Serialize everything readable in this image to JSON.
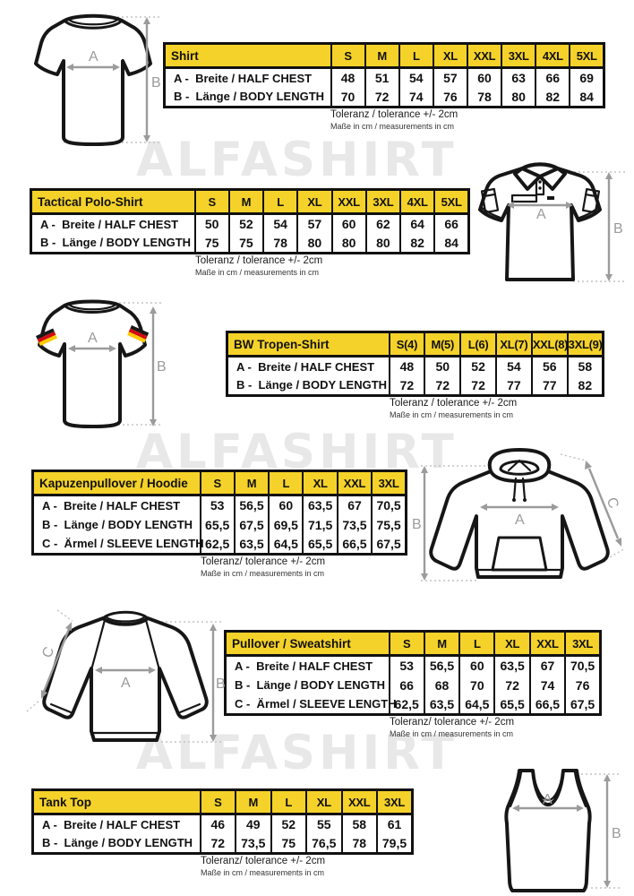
{
  "watermark": "ALFASHIRT",
  "colors": {
    "header_yellow": "#f5d229",
    "table_border": "#111111",
    "arrow_gray": "#9b9b9b",
    "watermark_gray": "#e8e8e8",
    "flag_black": "#181818",
    "flag_red": "#d40a12",
    "flag_gold": "#ffca00"
  },
  "sections": [
    {
      "id": "shirt",
      "title": "Shirt",
      "sizes": [
        "S",
        "M",
        "L",
        "XL",
        "XXL",
        "3XL",
        "4XL",
        "5XL"
      ],
      "rows": [
        {
          "label": "A -  Breite / HALF CHEST",
          "values": [
            "48",
            "51",
            "54",
            "57",
            "60",
            "63",
            "66",
            "69"
          ]
        },
        {
          "label": "B -  Länge / BODY LENGTH",
          "values": [
            "70",
            "72",
            "74",
            "76",
            "78",
            "80",
            "82",
            "84"
          ]
        }
      ],
      "note1": "Toleranz / tolerance +/- 2cm",
      "note2": "Maße in cm / measurements in cm",
      "diagram": {
        "type": "t-shirt",
        "labels": {
          "a": "A",
          "b": "B"
        }
      }
    },
    {
      "id": "tactical-polo-shirt",
      "title": "Tactical Polo-Shirt",
      "sizes": [
        "S",
        "M",
        "L",
        "XL",
        "XXL",
        "3XL",
        "4XL",
        "5XL"
      ],
      "rows": [
        {
          "label": "A -  Breite / HALF CHEST",
          "values": [
            "50",
            "52",
            "54",
            "57",
            "60",
            "62",
            "64",
            "66"
          ]
        },
        {
          "label": "B -  Länge / BODY LENGTH",
          "values": [
            "75",
            "75",
            "78",
            "80",
            "80",
            "80",
            "82",
            "84"
          ]
        }
      ],
      "note1": "Toleranz / tolerance +/- 2cm",
      "note2": "Maße in cm / measurements in cm",
      "diagram": {
        "type": "polo-shirt",
        "labels": {
          "a": "A",
          "b": "B"
        }
      }
    },
    {
      "id": "bw-tropen-shirt",
      "title": "BW Tropen-Shirt",
      "sizes": [
        "S(4)",
        "M(5)",
        "L(6)",
        "XL(7)",
        "XXL(8)",
        "3XL(9)"
      ],
      "rows": [
        {
          "label": "A -  Breite / HALF CHEST",
          "values": [
            "48",
            "50",
            "52",
            "54",
            "56",
            "58"
          ]
        },
        {
          "label": "B -  Länge / BODY LENGTH",
          "values": [
            "72",
            "72",
            "72",
            "77",
            "77",
            "82"
          ]
        }
      ],
      "note1": "Toleranz / tolerance +/- 2cm",
      "note2": "Maße in cm / measurements in cm",
      "diagram": {
        "type": "t-shirt-german-flags",
        "labels": {
          "a": "A",
          "b": "B"
        }
      }
    },
    {
      "id": "hoodie",
      "title": "Kapuzenpullover / Hoodie",
      "sizes": [
        "S",
        "M",
        "L",
        "XL",
        "XXL",
        "3XL"
      ],
      "rows": [
        {
          "label": "A -  Breite / HALF CHEST",
          "values": [
            "53",
            "56,5",
            "60",
            "63,5",
            "67",
            "70,5"
          ]
        },
        {
          "label": "B -  Länge / BODY LENGTH",
          "values": [
            "65,5",
            "67,5",
            "69,5",
            "71,5",
            "73,5",
            "75,5"
          ]
        },
        {
          "label": "C -  Ärmel / SLEEVE LENGTH",
          "values": [
            "62,5",
            "63,5",
            "64,5",
            "65,5",
            "66,5",
            "67,5"
          ]
        }
      ],
      "note1": "Toleranz/ tolerance +/- 2cm",
      "note2": "Maße in cm / measurements in cm",
      "diagram": {
        "type": "hoodie",
        "labels": {
          "a": "A",
          "b": "B",
          "c": "C"
        }
      }
    },
    {
      "id": "sweatshirt",
      "title": "Pullover / Sweatshirt",
      "sizes": [
        "S",
        "M",
        "L",
        "XL",
        "XXL",
        "3XL"
      ],
      "rows": [
        {
          "label": "A -  Breite / HALF CHEST",
          "values": [
            "53",
            "56,5",
            "60",
            "63,5",
            "67",
            "70,5"
          ]
        },
        {
          "label": "B -  Länge / BODY LENGTH",
          "values": [
            "66",
            "68",
            "70",
            "72",
            "74",
            "76"
          ]
        },
        {
          "label": "C -  Ärmel / SLEEVE LENGTH",
          "values": [
            "62,5",
            "63,5",
            "64,5",
            "65,5",
            "66,5",
            "67,5"
          ]
        }
      ],
      "note1": "Toleranz/ tolerance +/- 2cm",
      "note2": "Maße in cm / measurements in cm",
      "diagram": {
        "type": "sweatshirt",
        "labels": {
          "a": "A",
          "b": "B",
          "c": "C"
        }
      }
    },
    {
      "id": "tank-top",
      "title": "Tank Top",
      "sizes": [
        "S",
        "M",
        "L",
        "XL",
        "XXL",
        "3XL"
      ],
      "rows": [
        {
          "label": "A -  Breite / HALF CHEST",
          "values": [
            "46",
            "49",
            "52",
            "55",
            "58",
            "61"
          ]
        },
        {
          "label": "B -  Länge / BODY LENGTH",
          "values": [
            "72",
            "73,5",
            "75",
            "76,5",
            "78",
            "79,5"
          ]
        }
      ],
      "note1": "Toleranz/ tolerance +/- 2cm",
      "note2": "Maße in cm / measurements in cm",
      "diagram": {
        "type": "tank-top",
        "labels": {
          "a": "A",
          "b": "B"
        }
      }
    }
  ]
}
